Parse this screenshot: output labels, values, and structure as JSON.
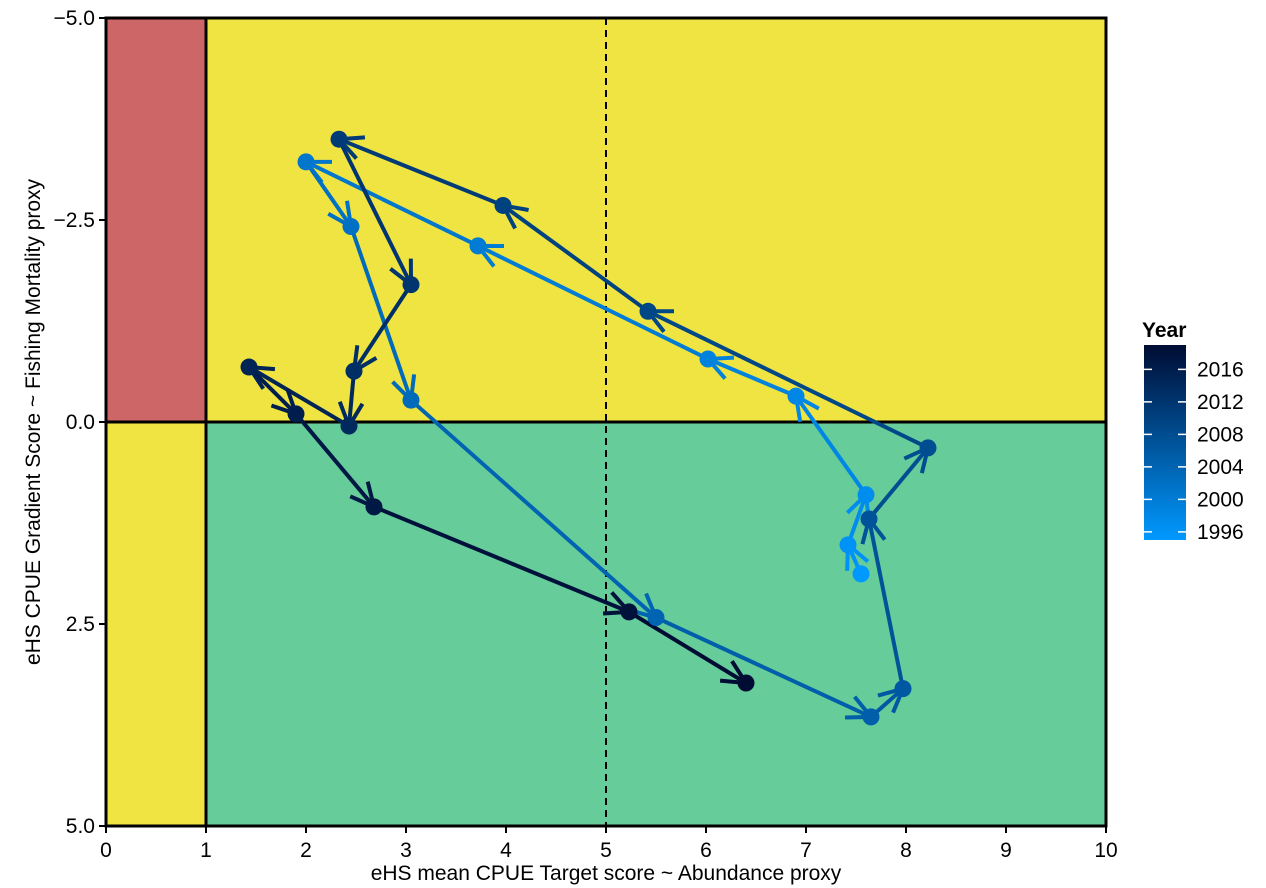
{
  "chart_data": {
    "type": "line",
    "title": "",
    "xlabel": "eHS mean CPUE Target score ~ Abundance proxy",
    "ylabel": "eHS CPUE Gradient Score ~ Fishing Mortality proxy",
    "xlim": [
      0,
      10
    ],
    "ylim": [
      -5.0,
      5.0
    ],
    "y_axis_reversed": true,
    "x_ticks": [
      0,
      1,
      2,
      3,
      4,
      5,
      6,
      7,
      8,
      9,
      10
    ],
    "x_tick_labels": [
      "0",
      "1",
      "2",
      "3",
      "4",
      "5",
      "6",
      "7",
      "8",
      "9",
      "10"
    ],
    "y_ticks": [
      -5.0,
      -2.5,
      0.0,
      2.5,
      5.0
    ],
    "y_tick_labels": [
      "−5.0",
      "−2.5",
      "0.0",
      "2.5",
      "5.0"
    ],
    "grid": false,
    "reference_lines": [
      {
        "axis": "x",
        "value": 1,
        "style": "solid"
      },
      {
        "axis": "y",
        "value": 0,
        "style": "solid"
      },
      {
        "axis": "x",
        "value": 5,
        "style": "dashed"
      }
    ],
    "regions": [
      {
        "x": [
          0,
          1
        ],
        "y": [
          -5,
          0
        ],
        "color": "#cd6666"
      },
      {
        "x": [
          0,
          1
        ],
        "y": [
          0,
          5
        ],
        "color": "#f0e442"
      },
      {
        "x": [
          1,
          10
        ],
        "y": [
          -5,
          0
        ],
        "color": "#f0e442"
      },
      {
        "x": [
          1,
          10
        ],
        "y": [
          0,
          5
        ],
        "color": "#66cc99"
      }
    ],
    "legend": {
      "title": "Year",
      "placement": "right",
      "labels": [
        "2016",
        "2012",
        "2008",
        "2004",
        "2000",
        "1996"
      ],
      "label_values": [
        2016,
        2012,
        2008,
        2004,
        2000,
        1996
      ],
      "range": [
        1995,
        2019
      ],
      "color_low": "#0099ff",
      "color_high": "#000c33"
    },
    "points": [
      {
        "year": 1995,
        "x": 7.55,
        "y": 1.88
      },
      {
        "year": 1996,
        "x": 7.42,
        "y": 1.52
      },
      {
        "year": 1997,
        "x": 7.6,
        "y": 0.9
      },
      {
        "year": 1998,
        "x": 6.9,
        "y": -0.32
      },
      {
        "year": 1999,
        "x": 6.02,
        "y": -0.78
      },
      {
        "year": 2000,
        "x": 3.72,
        "y": -2.18
      },
      {
        "year": 2001,
        "x": 2.0,
        "y": -3.22
      },
      {
        "year": 2002,
        "x": 2.45,
        "y": -2.42
      },
      {
        "year": 2003,
        "x": 3.05,
        "y": -0.27
      },
      {
        "year": 2004,
        "x": 5.5,
        "y": 2.42
      },
      {
        "year": 2005,
        "x": 7.65,
        "y": 3.65
      },
      {
        "year": 2006,
        "x": 7.97,
        "y": 3.3
      },
      {
        "year": 2007,
        "x": 7.63,
        "y": 1.2
      },
      {
        "year": 2008,
        "x": 8.22,
        "y": 0.32
      },
      {
        "year": 2009,
        "x": 5.42,
        "y": -1.37
      },
      {
        "year": 2010,
        "x": 3.97,
        "y": -2.68
      },
      {
        "year": 2011,
        "x": 2.33,
        "y": -3.5
      },
      {
        "year": 2012,
        "x": 3.05,
        "y": -1.7
      },
      {
        "year": 2013,
        "x": 2.48,
        "y": -0.63
      },
      {
        "year": 2014,
        "x": 2.43,
        "y": 0.05
      },
      {
        "year": 2015,
        "x": 1.43,
        "y": -0.68
      },
      {
        "year": 2016,
        "x": 1.9,
        "y": -0.1
      },
      {
        "year": 2017,
        "x": 2.68,
        "y": 1.05
      },
      {
        "year": 2018,
        "x": 5.23,
        "y": 2.35
      },
      {
        "year": 2019,
        "x": 6.4,
        "y": 3.23
      }
    ]
  }
}
